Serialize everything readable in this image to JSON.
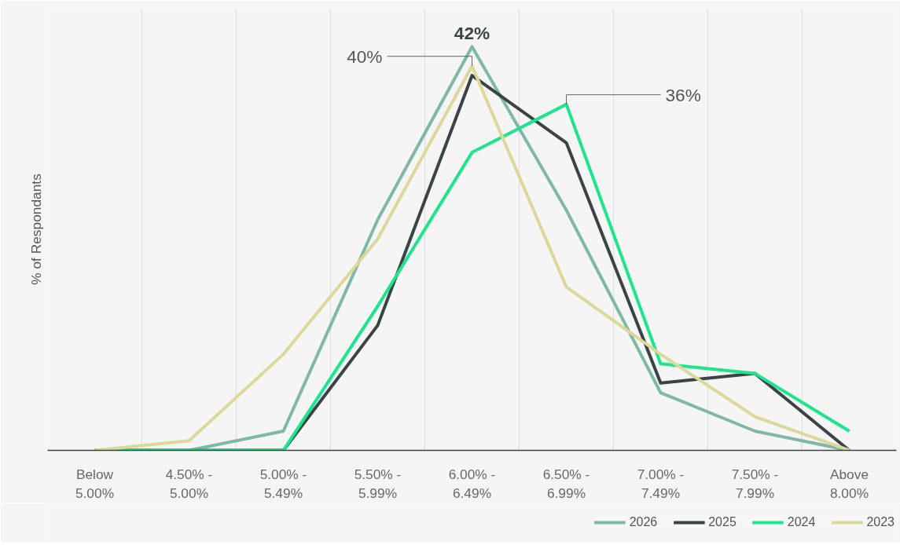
{
  "chart_data": {
    "type": "line",
    "ylabel": "% of Respondants",
    "categories": [
      "Below\n5.00%",
      "4.50% -\n5.00%",
      "5.00% -\n5.49%",
      "5.50% -\n5.99%",
      "6.00% -\n6.49%",
      "6.50% -\n6.99%",
      "7.00% -\n7.49%",
      "7.50% -\n7.99%",
      "Above\n8.00%"
    ],
    "series": [
      {
        "name": "2026",
        "color": "#7fb8a4",
        "values": [
          0,
          0,
          2,
          24,
          42,
          25,
          6,
          2,
          0
        ],
        "value_labels": [
          null,
          null,
          null,
          null,
          "42%",
          null,
          null,
          null,
          null
        ]
      },
      {
        "name": "2025",
        "color": "#3a4446",
        "values": [
          0,
          0,
          0,
          13,
          39,
          32,
          7,
          8,
          0
        ]
      },
      {
        "name": "2024",
        "color": "#1de58c",
        "values": [
          0,
          0,
          0,
          15,
          31,
          36,
          9,
          8,
          2
        ],
        "value_labels": [
          null,
          null,
          null,
          null,
          null,
          "36%",
          null,
          null,
          null
        ]
      },
      {
        "name": "2023",
        "color": "#dcd89a",
        "values": [
          0,
          1,
          10,
          22,
          40,
          17,
          10,
          3.5,
          0
        ],
        "value_labels": [
          null,
          null,
          null,
          null,
          "40%",
          null,
          null,
          null,
          null
        ]
      }
    ],
    "ylim": [
      0,
      46
    ],
    "tick_labels": "x",
    "grid": "x",
    "legend": "bottom right",
    "line_style": "solid",
    "marker": "none"
  }
}
